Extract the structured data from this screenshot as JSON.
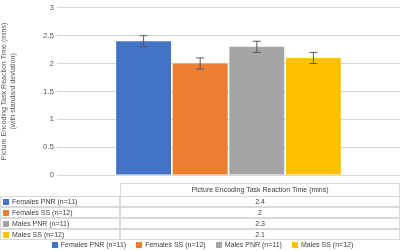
{
  "chart_data": {
    "type": "bar",
    "ylabel": "Picture Encoding Task Reaction Time (mins)",
    "ylabel_note": "(with standard deviation)",
    "categories": [
      "Picture Encoding Task Reaction Time (mins)"
    ],
    "series": [
      {
        "name": "Females PNR (n=11)",
        "color": "#4472c4",
        "values": [
          2.4
        ],
        "errors": [
          0.1
        ]
      },
      {
        "name": "Females SS (n=12)",
        "color": "#ed7d31",
        "values": [
          2
        ],
        "errors": [
          0.1
        ]
      },
      {
        "name": "Males PNR (n=11)",
        "color": "#a5a5a5",
        "values": [
          2.3
        ],
        "errors": [
          0.1
        ]
      },
      {
        "name": "Males SS (n=12)",
        "color": "#ffc000",
        "values": [
          2.1
        ],
        "errors": [
          0.1
        ]
      }
    ],
    "ylim": [
      0,
      3
    ],
    "yticks": [
      0,
      0.5,
      1,
      1.5,
      2,
      2.5,
      3
    ],
    "grid": true,
    "legend": "bottom"
  }
}
